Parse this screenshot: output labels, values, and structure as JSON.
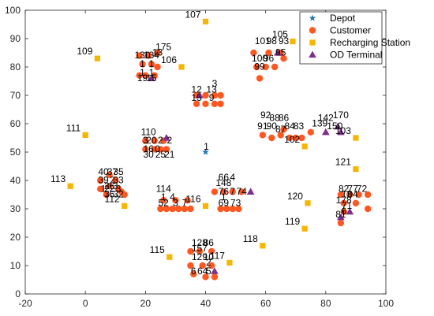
{
  "chart_data": {
    "type": "scatter",
    "title": "",
    "xlabel": "",
    "ylabel": "",
    "xlim": [
      -20,
      100
    ],
    "ylim": [
      0,
      100
    ],
    "x_ticks": [
      -20,
      0,
      20,
      40,
      60,
      80,
      100
    ],
    "y_ticks": [
      0,
      10,
      20,
      30,
      40,
      50,
      60,
      70,
      80,
      90,
      100
    ],
    "grid": false,
    "legend_position": "top-right",
    "series": [
      {
        "name": "Depot",
        "marker": "star",
        "color": "#1f77b4",
        "points": [
          {
            "x": 40,
            "y": 50,
            "label": "1"
          }
        ]
      },
      {
        "name": "Customer",
        "marker": "circle",
        "color": "#ff5722",
        "points": [
          {
            "x": 18,
            "y": 84
          },
          {
            "x": 21,
            "y": 84
          },
          {
            "x": 24,
            "y": 85
          },
          {
            "x": 19,
            "y": 81
          },
          {
            "x": 22,
            "y": 81
          },
          {
            "x": 18,
            "y": 77
          },
          {
            "x": 20,
            "y": 77
          },
          {
            "x": 23,
            "y": 77
          },
          {
            "x": 24,
            "y": 80
          },
          {
            "x": 37,
            "y": 70
          },
          {
            "x": 40,
            "y": 70
          },
          {
            "x": 43,
            "y": 70
          },
          {
            "x": 37,
            "y": 67
          },
          {
            "x": 40,
            "y": 67
          },
          {
            "x": 43,
            "y": 67
          },
          {
            "x": 45,
            "y": 70
          },
          {
            "x": 45,
            "y": 67
          },
          {
            "x": 56,
            "y": 85
          },
          {
            "x": 61,
            "y": 85
          },
          {
            "x": 65,
            "y": 85
          },
          {
            "x": 57,
            "y": 80
          },
          {
            "x": 60,
            "y": 80
          },
          {
            "x": 63,
            "y": 80
          },
          {
            "x": 66,
            "y": 83
          },
          {
            "x": 58,
            "y": 76
          },
          {
            "x": 59,
            "y": 56
          },
          {
            "x": 62,
            "y": 55
          },
          {
            "x": 65,
            "y": 56
          },
          {
            "x": 68,
            "y": 55
          },
          {
            "x": 70,
            "y": 55
          },
          {
            "x": 72,
            "y": 55
          },
          {
            "x": 66,
            "y": 58
          },
          {
            "x": 75,
            "y": 57
          },
          {
            "x": 20,
            "y": 51
          },
          {
            "x": 23,
            "y": 51
          },
          {
            "x": 25,
            "y": 51
          },
          {
            "x": 27,
            "y": 51
          },
          {
            "x": 20,
            "y": 54
          },
          {
            "x": 23,
            "y": 54
          },
          {
            "x": 26,
            "y": 54
          },
          {
            "x": 5,
            "y": 40
          },
          {
            "x": 8,
            "y": 42
          },
          {
            "x": 10,
            "y": 40
          },
          {
            "x": 5,
            "y": 37
          },
          {
            "x": 8,
            "y": 38
          },
          {
            "x": 11,
            "y": 37
          },
          {
            "x": 7,
            "y": 35
          },
          {
            "x": 12,
            "y": 36
          },
          {
            "x": 13,
            "y": 35
          },
          {
            "x": 25,
            "y": 30
          },
          {
            "x": 27,
            "y": 30
          },
          {
            "x": 29,
            "y": 30
          },
          {
            "x": 31,
            "y": 30
          },
          {
            "x": 33,
            "y": 30
          },
          {
            "x": 35,
            "y": 30
          },
          {
            "x": 26,
            "y": 33
          },
          {
            "x": 30,
            "y": 33
          },
          {
            "x": 34,
            "y": 33
          },
          {
            "x": 45,
            "y": 30
          },
          {
            "x": 47,
            "y": 30
          },
          {
            "x": 49,
            "y": 30
          },
          {
            "x": 51,
            "y": 30
          },
          {
            "x": 43,
            "y": 36
          },
          {
            "x": 46,
            "y": 36
          },
          {
            "x": 49,
            "y": 36
          },
          {
            "x": 52,
            "y": 36
          },
          {
            "x": 85,
            "y": 35
          },
          {
            "x": 88,
            "y": 35
          },
          {
            "x": 91,
            "y": 35
          },
          {
            "x": 94,
            "y": 35
          },
          {
            "x": 86,
            "y": 32
          },
          {
            "x": 90,
            "y": 32
          },
          {
            "x": 94,
            "y": 30
          },
          {
            "x": 86,
            "y": 29
          },
          {
            "x": 85,
            "y": 25
          },
          {
            "x": 35,
            "y": 15
          },
          {
            "x": 38,
            "y": 15
          },
          {
            "x": 42,
            "y": 15
          },
          {
            "x": 35,
            "y": 10
          },
          {
            "x": 39,
            "y": 10
          },
          {
            "x": 42,
            "y": 10
          },
          {
            "x": 36,
            "y": 7
          },
          {
            "x": 40,
            "y": 6
          },
          {
            "x": 43,
            "y": 6
          }
        ]
      },
      {
        "name": "Recharging Station",
        "marker": "square",
        "color": "#f5b500",
        "points": [
          {
            "x": 40,
            "y": 96,
            "label": "107"
          },
          {
            "x": 69,
            "y": 89,
            "label": "105"
          },
          {
            "x": 4,
            "y": 83,
            "label": "109"
          },
          {
            "x": 32,
            "y": 80,
            "label": "106"
          },
          {
            "x": 0,
            "y": 56,
            "label": "111"
          },
          {
            "x": 73,
            "y": 52,
            "label": "102"
          },
          {
            "x": 90,
            "y": 55,
            "label": "103"
          },
          {
            "x": 90,
            "y": 44,
            "label": "121"
          },
          {
            "x": -5,
            "y": 38,
            "label": "113"
          },
          {
            "x": 13,
            "y": 31,
            "label": "112"
          },
          {
            "x": 40,
            "y": 31,
            "label": "116"
          },
          {
            "x": 74,
            "y": 32,
            "label": "120"
          },
          {
            "x": 73,
            "y": 23,
            "label": "119"
          },
          {
            "x": 59,
            "y": 17,
            "label": "118"
          },
          {
            "x": 28,
            "y": 13,
            "label": "115"
          },
          {
            "x": 48,
            "y": 11,
            "label": "117"
          }
        ]
      },
      {
        "name": "OD Terminal",
        "marker": "triangle",
        "color": "#7e2f8e",
        "points": [
          {
            "x": 22,
            "y": 76
          },
          {
            "x": 38,
            "y": 70
          },
          {
            "x": 64,
            "y": 85
          },
          {
            "x": 84,
            "y": 59
          },
          {
            "x": 80,
            "y": 57
          },
          {
            "x": 85,
            "y": 57
          },
          {
            "x": 27,
            "y": 55
          },
          {
            "x": 55,
            "y": 36
          },
          {
            "x": 88,
            "y": 29
          },
          {
            "x": 85,
            "y": 27
          },
          {
            "x": 43,
            "y": 8
          }
        ]
      }
    ],
    "point_labels": [
      {
        "x": 42,
        "y": 52,
        "text": "1"
      },
      {
        "x": 26,
        "y": 86,
        "text": "175"
      },
      {
        "x": 24,
        "y": 84,
        "text": "13"
      },
      {
        "x": 19,
        "y": 83,
        "text": "130"
      },
      {
        "x": 22,
        "y": 83,
        "text": "134"
      },
      {
        "x": 19,
        "y": 80,
        "text": "1"
      },
      {
        "x": 22,
        "y": 80,
        "text": "1"
      },
      {
        "x": 19,
        "y": 77,
        "text": "1"
      },
      {
        "x": 22,
        "y": 77,
        "text": "1"
      },
      {
        "x": 19,
        "y": 75,
        "text": "19"
      },
      {
        "x": 22,
        "y": 75,
        "text": "15"
      },
      {
        "x": 37,
        "y": 71,
        "text": "12"
      },
      {
        "x": 42,
        "y": 71,
        "text": "13"
      },
      {
        "x": 43,
        "y": 73,
        "text": "3"
      },
      {
        "x": 37,
        "y": 68,
        "text": "15"
      },
      {
        "x": 42,
        "y": 68,
        "text": "9"
      },
      {
        "x": 59,
        "y": 88,
        "text": "101"
      },
      {
        "x": 62,
        "y": 88,
        "text": "98"
      },
      {
        "x": 66,
        "y": 88,
        "text": "93"
      },
      {
        "x": 58,
        "y": 82,
        "text": "100"
      },
      {
        "x": 61,
        "y": 82,
        "text": "96"
      },
      {
        "x": 65,
        "y": 84,
        "text": "95"
      },
      {
        "x": 58,
        "y": 79,
        "text": "99"
      },
      {
        "x": 60,
        "y": 62,
        "text": "92"
      },
      {
        "x": 63,
        "y": 61,
        "text": "88"
      },
      {
        "x": 66,
        "y": 61,
        "text": "86"
      },
      {
        "x": 59,
        "y": 58,
        "text": "91"
      },
      {
        "x": 62,
        "y": 58,
        "text": "90"
      },
      {
        "x": 65,
        "y": 57,
        "text": "87"
      },
      {
        "x": 68,
        "y": 58,
        "text": "84"
      },
      {
        "x": 71,
        "y": 58,
        "text": "83"
      },
      {
        "x": 80,
        "y": 61,
        "text": "142"
      },
      {
        "x": 85,
        "y": 62,
        "text": "170"
      },
      {
        "x": 78,
        "y": 59,
        "text": "139"
      },
      {
        "x": 83,
        "y": 58,
        "text": "150"
      },
      {
        "x": 21,
        "y": 56,
        "text": "110"
      },
      {
        "x": 20,
        "y": 53,
        "text": "3"
      },
      {
        "x": 22,
        "y": 53,
        "text": "20"
      },
      {
        "x": 25,
        "y": 53,
        "text": "2"
      },
      {
        "x": 28,
        "y": 53,
        "text": "2"
      },
      {
        "x": 21,
        "y": 50,
        "text": "16"
      },
      {
        "x": 24,
        "y": 50,
        "text": "0"
      },
      {
        "x": 21,
        "y": 48,
        "text": "30"
      },
      {
        "x": 25,
        "y": 48,
        "text": "25"
      },
      {
        "x": 28,
        "y": 48,
        "text": "21"
      },
      {
        "x": 6,
        "y": 42,
        "text": "40"
      },
      {
        "x": 9,
        "y": 42,
        "text": "37"
      },
      {
        "x": 11,
        "y": 42,
        "text": "35"
      },
      {
        "x": 6,
        "y": 39,
        "text": "39"
      },
      {
        "x": 9,
        "y": 39,
        "text": "2"
      },
      {
        "x": 11,
        "y": 39,
        "text": "33"
      },
      {
        "x": 8,
        "y": 37,
        "text": "26"
      },
      {
        "x": 10,
        "y": 37,
        "text": "3"
      },
      {
        "x": 6,
        "y": 36,
        "text": "1"
      },
      {
        "x": 8,
        "y": 36,
        "text": "22"
      },
      {
        "x": 11,
        "y": 36,
        "text": "3"
      },
      {
        "x": 8,
        "y": 34,
        "text": "36"
      },
      {
        "x": 11,
        "y": 34,
        "text": "32"
      },
      {
        "x": 26,
        "y": 36,
        "text": "114"
      },
      {
        "x": 26,
        "y": 33,
        "text": "1"
      },
      {
        "x": 29,
        "y": 33,
        "text": "4"
      },
      {
        "x": 26,
        "y": 31,
        "text": "52"
      },
      {
        "x": 30,
        "y": 31,
        "text": "3"
      },
      {
        "x": 33,
        "y": 31,
        "text": "7"
      },
      {
        "x": 46,
        "y": 40,
        "text": "66"
      },
      {
        "x": 49,
        "y": 40,
        "text": "4"
      },
      {
        "x": 46,
        "y": 38,
        "text": "148"
      },
      {
        "x": 49,
        "y": 35,
        "text": "7"
      },
      {
        "x": 52,
        "y": 35,
        "text": "74"
      },
      {
        "x": 46,
        "y": 35,
        "text": "76"
      },
      {
        "x": 46,
        "y": 33,
        "text": "1"
      },
      {
        "x": 46,
        "y": 31,
        "text": "69"
      },
      {
        "x": 50,
        "y": 31,
        "text": "73"
      },
      {
        "x": 86,
        "y": 36,
        "text": "82"
      },
      {
        "x": 89,
        "y": 36,
        "text": "77"
      },
      {
        "x": 92,
        "y": 36,
        "text": "72"
      },
      {
        "x": 87,
        "y": 34,
        "text": "13"
      },
      {
        "x": 89,
        "y": 34,
        "text": "04"
      },
      {
        "x": 86,
        "y": 32,
        "text": "178"
      },
      {
        "x": 87,
        "y": 30,
        "text": "71"
      },
      {
        "x": 85,
        "y": 27,
        "text": "81"
      },
      {
        "x": 86,
        "y": 28,
        "text": "6"
      },
      {
        "x": 38,
        "y": 17,
        "text": "128"
      },
      {
        "x": 41,
        "y": 17,
        "text": "86"
      },
      {
        "x": 38,
        "y": 15,
        "text": "157"
      },
      {
        "x": 38,
        "y": 12,
        "text": "129"
      },
      {
        "x": 41,
        "y": 12,
        "text": "10"
      },
      {
        "x": 41,
        "y": 10,
        "text": "2"
      },
      {
        "x": 36,
        "y": 7,
        "text": "6"
      },
      {
        "x": 39,
        "y": 7,
        "text": "64"
      },
      {
        "x": 41,
        "y": 7,
        "text": "5"
      }
    ]
  },
  "legend": {
    "items": [
      {
        "label": "Depot",
        "marker": "star",
        "color": "#1f77b4"
      },
      {
        "label": "Customer",
        "marker": "circle",
        "color": "#ff5722"
      },
      {
        "label": "Recharging Station",
        "marker": "square",
        "color": "#f5b500"
      },
      {
        "label": "OD Terminal",
        "marker": "triangle",
        "color": "#7e2f8e"
      }
    ]
  }
}
